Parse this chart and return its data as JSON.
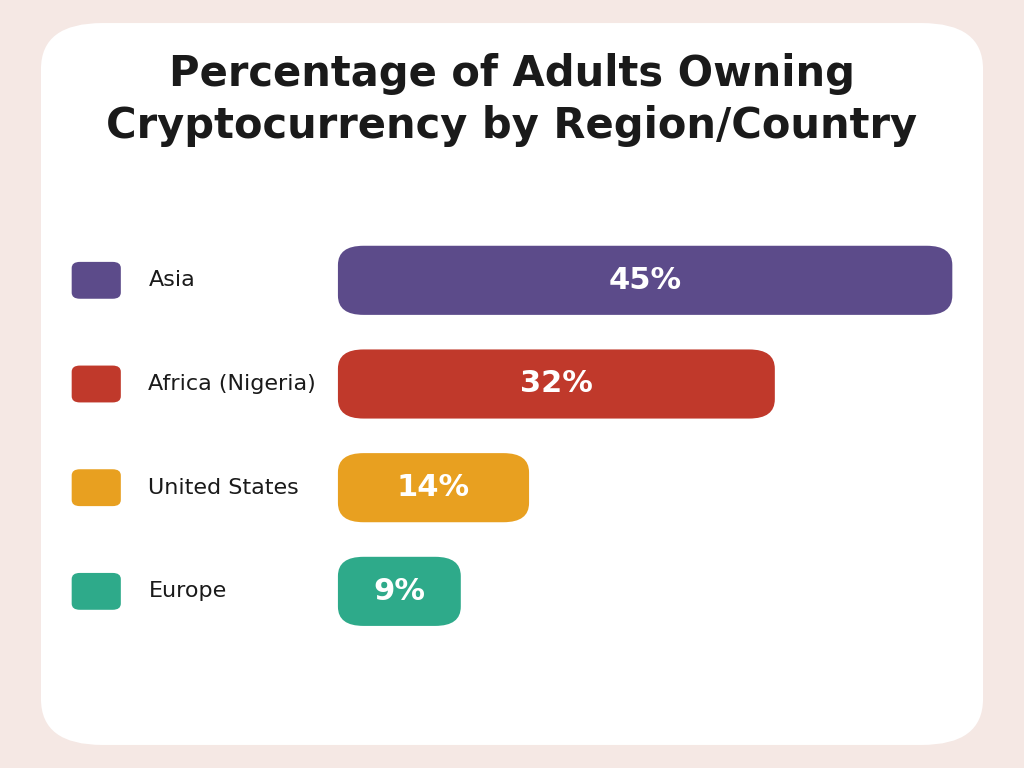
{
  "title": "Percentage of Adults Owning\nCryptocurrency by Region/Country",
  "categories": [
    "Asia",
    "Africa (Nigeria)",
    "United States",
    "Europe"
  ],
  "values": [
    45,
    32,
    14,
    9
  ],
  "colors": [
    "#5c4b8a",
    "#c0392b",
    "#e8a020",
    "#2eaa8a"
  ],
  "labels": [
    "45%",
    "32%",
    "14%",
    "9%"
  ],
  "background_outer": "#f5e8e4",
  "background_inner": "#ffffff",
  "text_color": "#1a1a1a",
  "bar_text_color": "#ffffff",
  "title_fontsize": 30,
  "bar_label_fontsize": 22,
  "legend_fontsize": 16,
  "max_value": 45
}
